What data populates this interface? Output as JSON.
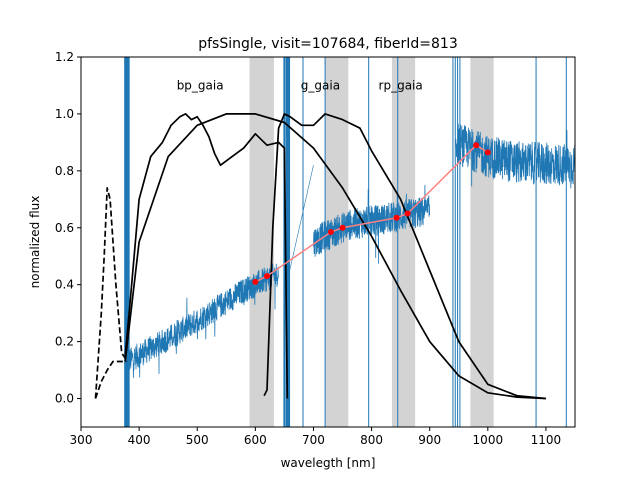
{
  "chart_data": {
    "type": "line",
    "title": "pfsSingle, visit=107684, fiberId=813",
    "xlabel": "wavelegth [nm]",
    "ylabel": "normalized flux",
    "xlim": [
      300,
      1150
    ],
    "ylim": [
      -0.1,
      1.2
    ],
    "xticks": [
      300,
      400,
      500,
      600,
      700,
      800,
      900,
      1000,
      1100
    ],
    "yticks": [
      0.0,
      0.2,
      0.4,
      0.6,
      0.8,
      1.0,
      1.2
    ],
    "xtick_labels": [
      "300",
      "400",
      "500",
      "600",
      "700",
      "800",
      "900",
      "1000",
      "1100"
    ],
    "ytick_labels": [
      "0.0",
      "0.2",
      "0.4",
      "0.6",
      "0.8",
      "1.0",
      "1.2"
    ],
    "grid": false,
    "band_labels": [
      {
        "text": "bp_gaia",
        "x": 505,
        "y": 1.1
      },
      {
        "text": "g_gaia",
        "x": 712,
        "y": 1.1
      },
      {
        "text": "rp_gaia",
        "x": 850,
        "y": 1.1
      }
    ],
    "shaded_bands": [
      [
        590,
        632
      ],
      [
        720,
        760
      ],
      [
        835,
        875
      ],
      [
        970,
        1010
      ]
    ],
    "colors": {
      "spectrum": "#1f77b4",
      "filters": "#000000",
      "photometry": "#ff0000",
      "photometry_line": "#ff8080",
      "band_fill": "#d3d3d3"
    },
    "series": [
      {
        "name": "spectrum",
        "style": "noisy-line",
        "segments": [
          {
            "x": [
              380,
              450,
              520,
              580,
              640
            ],
            "y": [
              0.13,
              0.21,
              0.3,
              0.38,
              0.44
            ],
            "noise": 0.045
          },
          {
            "x": [
              700,
              760,
              820,
              900
            ],
            "y": [
              0.55,
              0.61,
              0.63,
              0.66
            ],
            "noise": 0.055
          },
          {
            "x": [
              945,
              1000,
              1050,
              1150
            ],
            "y": [
              0.9,
              0.85,
              0.83,
              0.82
            ],
            "noise": 0.075
          }
        ],
        "spikes": [
          376,
          378,
          380,
          382,
          650,
          654,
          656,
          658,
          682,
          720,
          795,
          845,
          940,
          944,
          948,
          952,
          1083,
          1135
        ]
      },
      {
        "name": "bp_gaia_response",
        "style": "solid",
        "x": [
          376,
          385,
          400,
          420,
          440,
          455,
          470,
          480,
          490,
          500,
          510,
          520,
          530,
          540,
          560,
          580,
          600,
          620,
          640,
          650,
          655
        ],
        "y": [
          0.15,
          0.35,
          0.7,
          0.85,
          0.9,
          0.96,
          0.99,
          1.0,
          0.98,
          0.99,
          0.96,
          0.92,
          0.86,
          0.82,
          0.85,
          0.88,
          0.93,
          0.89,
          0.9,
          0.88,
          0.0
        ]
      },
      {
        "name": "g_gaia_response",
        "style": "solid",
        "x": [
          376,
          400,
          450,
          500,
          550,
          600,
          650,
          700,
          750,
          800,
          850,
          900,
          950,
          1000,
          1050,
          1100
        ],
        "y": [
          0.13,
          0.55,
          0.85,
          0.96,
          1.0,
          1.0,
          0.97,
          0.88,
          0.74,
          0.57,
          0.38,
          0.2,
          0.08,
          0.02,
          0.005,
          0.0
        ]
      },
      {
        "name": "rp_gaia_response",
        "style": "solid",
        "x": [
          615,
          620,
          630,
          640,
          650,
          660,
          680,
          700,
          720,
          750,
          780,
          800,
          850,
          900,
          950,
          1000,
          1050,
          1100
        ],
        "y": [
          0.01,
          0.03,
          0.6,
          0.95,
          1.0,
          0.99,
          0.96,
          0.96,
          1.0,
          0.98,
          0.95,
          0.87,
          0.7,
          0.45,
          0.2,
          0.05,
          0.01,
          0.0
        ]
      },
      {
        "name": "uv_response",
        "style": "dashed",
        "x": [
          325,
          335,
          340,
          345,
          350,
          360,
          370,
          380
        ],
        "y": [
          0.0,
          0.3,
          0.5,
          0.74,
          0.7,
          0.4,
          0.16,
          0.13
        ]
      },
      {
        "name": "uv_response_low",
        "style": "dashed",
        "x": [
          325,
          335,
          345,
          355,
          365,
          378
        ],
        "y": [
          0.0,
          0.06,
          0.1,
          0.13,
          0.13,
          0.13
        ]
      },
      {
        "name": "photometry",
        "style": "points",
        "x": [
          600,
          620,
          730,
          750,
          843,
          862,
          980,
          1000
        ],
        "y": [
          0.41,
          0.43,
          0.585,
          0.6,
          0.635,
          0.65,
          0.89,
          0.865
        ]
      }
    ]
  }
}
